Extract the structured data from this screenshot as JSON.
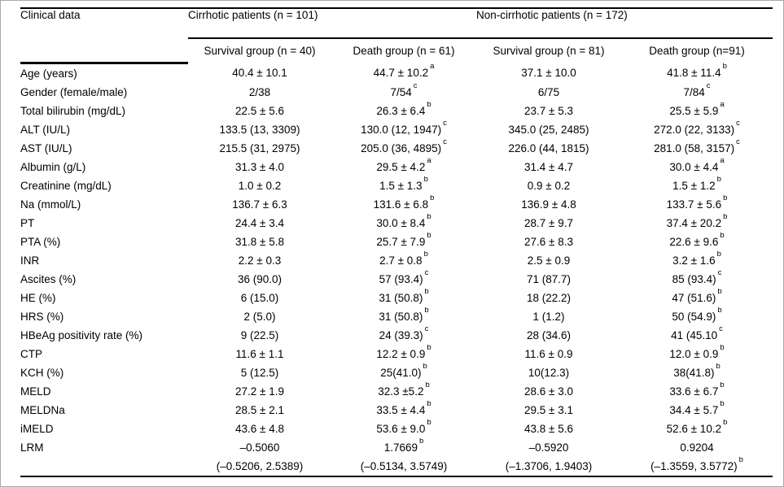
{
  "table": {
    "col0_header": "Clinical data",
    "groups": [
      {
        "label": "Cirrhotic patients (n = 101)",
        "subcolumns": [
          "Survival group (n = 40)",
          "Death group (n = 61)"
        ]
      },
      {
        "label": "Non-cirrhotic patients (n = 172)",
        "subcolumns": [
          "Survival group (n = 81)",
          "Death group (n=91)"
        ]
      }
    ],
    "rows": [
      {
        "label": "Age (years)",
        "cells": [
          {
            "v": "40.4 ± 10.1"
          },
          {
            "v": "44.7 ± 10.2",
            "sup": "a"
          },
          {
            "v": "37.1 ± 10.0"
          },
          {
            "v": "41.8 ± 11.4",
            "sup": "b"
          }
        ]
      },
      {
        "label": "Gender (female/male)",
        "cells": [
          {
            "v": "2/38"
          },
          {
            "v": "7/54",
            "sup": "c"
          },
          {
            "v": "6/75"
          },
          {
            "v": "7/84",
            "sup": "c"
          }
        ]
      },
      {
        "label": "Total bilirubin (mg/dL)",
        "cells": [
          {
            "v": "22.5 ± 5.6"
          },
          {
            "v": "26.3 ± 6.4",
            "sup": "b"
          },
          {
            "v": "23.7 ± 5.3"
          },
          {
            "v": "25.5 ± 5.9",
            "sup": "a"
          }
        ]
      },
      {
        "label": "ALT (IU/L)",
        "cells": [
          {
            "v": "133.5 (13, 3309)"
          },
          {
            "v": "130.0 (12, 1947)",
            "sup": "c"
          },
          {
            "v": "345.0 (25, 2485)"
          },
          {
            "v": "272.0 (22, 3133)",
            "sup": "c"
          }
        ]
      },
      {
        "label": "AST (IU/L)",
        "cells": [
          {
            "v": "215.5 (31, 2975)"
          },
          {
            "v": "205.0 (36, 4895)",
            "sup": "c"
          },
          {
            "v": "226.0 (44, 1815)"
          },
          {
            "v": "281.0 (58, 3157)",
            "sup": "c"
          }
        ]
      },
      {
        "label": "Albumin (g/L)",
        "cells": [
          {
            "v": "31.3 ± 4.0"
          },
          {
            "v": "29.5 ± 4.2",
            "sup": "a"
          },
          {
            "v": "31.4 ± 4.7"
          },
          {
            "v": "30.0 ± 4.4",
            "sup": "a"
          }
        ]
      },
      {
        "label": "Creatinine (mg/dL)",
        "cells": [
          {
            "v": "1.0 ± 0.2"
          },
          {
            "v": "1.5 ± 1.3",
            "sup": "b"
          },
          {
            "v": "0.9 ± 0.2"
          },
          {
            "v": "1.5 ± 1.2",
            "sup": "b"
          }
        ]
      },
      {
        "label": "Na (mmol/L)",
        "cells": [
          {
            "v": "136.7 ± 6.3"
          },
          {
            "v": "131.6 ± 6.8",
            "sup": "b"
          },
          {
            "v": "136.9 ± 4.8"
          },
          {
            "v": "133.7 ± 5.6",
            "sup": "b"
          }
        ]
      },
      {
        "label": "PT",
        "cells": [
          {
            "v": "24.4 ± 3.4"
          },
          {
            "v": "30.0 ± 8.4",
            "sup": "b"
          },
          {
            "v": "28.7 ± 9.7"
          },
          {
            "v": "37.4 ± 20.2",
            "sup": "b"
          }
        ]
      },
      {
        "label": "PTA (%)",
        "cells": [
          {
            "v": "31.8 ± 5.8"
          },
          {
            "v": "25.7 ± 7.9",
            "sup": "b"
          },
          {
            "v": "27.6 ± 8.3"
          },
          {
            "v": "22.6 ± 9.6",
            "sup": "b"
          }
        ]
      },
      {
        "label": "INR",
        "cells": [
          {
            "v": "2.2 ± 0.3"
          },
          {
            "v": "2.7 ± 0.8",
            "sup": "b"
          },
          {
            "v": "2.5 ± 0.9"
          },
          {
            "v": "3.2 ± 1.6",
            "sup": "b"
          }
        ]
      },
      {
        "label": "Ascites (%)",
        "cells": [
          {
            "v": "36 (90.0)"
          },
          {
            "v": "57 (93.4)",
            "sup": "c"
          },
          {
            "v": "71 (87.7)"
          },
          {
            "v": "85 (93.4)",
            "sup": "c"
          }
        ]
      },
      {
        "label": "HE (%)",
        "cells": [
          {
            "v": "6 (15.0)"
          },
          {
            "v": "31 (50.8)",
            "sup": "b"
          },
          {
            "v": "18 (22.2)"
          },
          {
            "v": "47 (51.6)",
            "sup": "b"
          }
        ]
      },
      {
        "label": "HRS (%)",
        "cells": [
          {
            "v": "2 (5.0)"
          },
          {
            "v": "31 (50.8)",
            "sup": "b"
          },
          {
            "v": "1 (1.2)"
          },
          {
            "v": "50 (54.9)",
            "sup": "b"
          }
        ]
      },
      {
        "label": "HBeAg positivity rate (%)",
        "cells": [
          {
            "v": "9 (22.5)"
          },
          {
            "v": "24 (39.3)",
            "sup": "c"
          },
          {
            "v": "28 (34.6)"
          },
          {
            "v": "41 (45.10",
            "sup": "c"
          }
        ]
      },
      {
        "label": "CTP",
        "cells": [
          {
            "v": "11.6 ± 1.1"
          },
          {
            "v": "12.2 ± 0.9",
            "sup": "b"
          },
          {
            "v": "11.6 ± 0.9"
          },
          {
            "v": "12.0 ± 0.9",
            "sup": "b"
          }
        ]
      },
      {
        "label": "KCH (%)",
        "cells": [
          {
            "v": "5 (12.5)"
          },
          {
            "v": "25(41.0)",
            "sup": "b"
          },
          {
            "v": "10(12.3)"
          },
          {
            "v": "38(41.8)",
            "sup": "b"
          }
        ]
      },
      {
        "label": "MELD",
        "cells": [
          {
            "v": "27.2 ± 1.9"
          },
          {
            "v": "32.3 ±5.2",
            "sup": "b"
          },
          {
            "v": "28.6 ± 3.0"
          },
          {
            "v": "33.6 ± 6.7",
            "sup": "b"
          }
        ]
      },
      {
        "label": "MELDNa",
        "cells": [
          {
            "v": "28.5 ± 2.1"
          },
          {
            "v": "33.5 ± 4.4",
            "sup": "b"
          },
          {
            "v": "29.5 ± 3.1"
          },
          {
            "v": "34.4 ± 5.7",
            "sup": "b"
          }
        ]
      },
      {
        "label": "iMELD",
        "cells": [
          {
            "v": "43.6 ± 4.8"
          },
          {
            "v": "53.6 ± 9.0",
            "sup": "b"
          },
          {
            "v": "43.8 ± 5.6"
          },
          {
            "v": "52.6 ± 10.2",
            "sup": "b"
          }
        ]
      },
      {
        "label": "LRM",
        "cells": [
          {
            "v": "–0.5060"
          },
          {
            "v": "1.7669",
            "sup": "b"
          },
          {
            "v": "–0.5920"
          },
          {
            "v": "0.9204"
          }
        ]
      },
      {
        "label": "",
        "cells": [
          {
            "v": "(–0.5206, 2.5389)"
          },
          {
            "v": "(–0.5134, 3.5749)"
          },
          {
            "v": "(–1.3706, 1.9403)"
          },
          {
            "v": "(–1.3559, 3.5772)",
            "sup": "b"
          }
        ]
      }
    ]
  }
}
